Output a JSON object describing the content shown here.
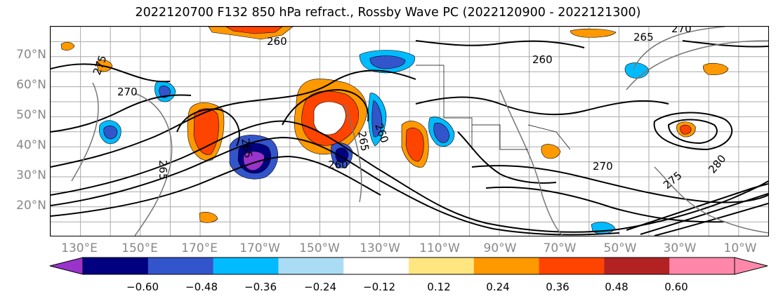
{
  "title": "2022120700 F132 850 hPa refract., Rossby Wave PC (2022120900 - 2022121300)",
  "lat_labels": [
    "70°N",
    "60°N",
    "50°N",
    "40°N",
    "30°N",
    "20°N"
  ],
  "lon_labels": [
    "130°E",
    "150°E",
    "170°E",
    "170°W",
    "150°W",
    "130°W",
    "110°W",
    "90°W",
    "70°W",
    "50°W",
    "30°W",
    "10°W"
  ],
  "contour_labels": [
    "265",
    "260",
    "270",
    "265",
    "260",
    "265",
    "265",
    "260",
    "270",
    "275",
    "280",
    "260",
    "275",
    "270"
  ],
  "colorbar": {
    "ticks": [
      "−0.60",
      "−0.48",
      "−0.36",
      "−0.24",
      "−0.12",
      "0.12",
      "0.24",
      "0.36",
      "0.48",
      "0.60"
    ],
    "colors": [
      "#9933cc",
      "#000080",
      "#3355cc",
      "#00bbff",
      "#aaddf5",
      "#ffffff",
      "#ffe680",
      "#ff9900",
      "#ff4400",
      "#b22222",
      "#ff88aa",
      "#ff88aa"
    ]
  },
  "chart_data": {
    "type": "map",
    "title": "2022120700 F132 850 hPa refract., Rossby Wave PC (2022120900 - 2022121300)",
    "variable": "850 hPa refractivity (contours) and Rossby Wave PC (shaded)",
    "lat_ticks": [
      "70°N",
      "60°N",
      "50°N",
      "40°N",
      "30°N",
      "20°N"
    ],
    "lon_ticks": [
      "130°E",
      "150°E",
      "170°E",
      "170°W",
      "150°W",
      "130°W",
      "110°W",
      "90°W",
      "70°W",
      "50°W",
      "30°W",
      "10°W"
    ],
    "shading_levels": [
      -0.6,
      -0.48,
      -0.36,
      -0.24,
      -0.12,
      0.12,
      0.24,
      0.36,
      0.48,
      0.6
    ],
    "contour_values_labeled": [
      260,
      265,
      270,
      275,
      280
    ]
  }
}
